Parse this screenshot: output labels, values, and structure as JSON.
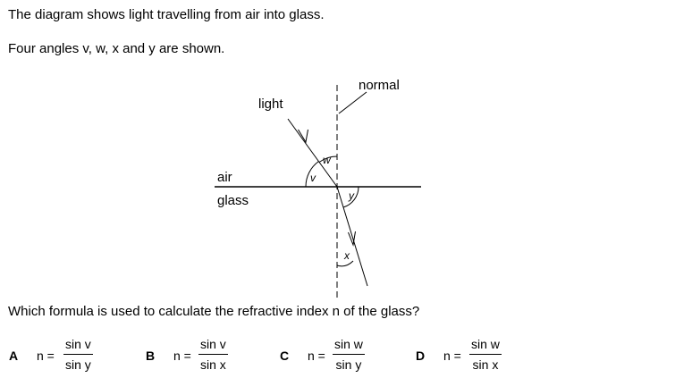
{
  "intro_line_1": "The diagram shows light travelling from air into glass.",
  "intro_line_2": "Four angles v, w, x and y are shown.",
  "diagram": {
    "label_normal": "normal",
    "label_light": "light",
    "label_air": "air",
    "label_glass": "glass",
    "angle_v": "v",
    "angle_w": "w",
    "angle_x": "x",
    "angle_y": "y"
  },
  "question": "Which formula is used to calculate the refractive index n of the glass?",
  "options": [
    {
      "letter": "A",
      "lhs": "n =",
      "numerator": "sin v",
      "denominator": "sin y"
    },
    {
      "letter": "B",
      "lhs": "n =",
      "numerator": "sin v",
      "denominator": "sin x"
    },
    {
      "letter": "C",
      "lhs": "n =",
      "numerator": "sin w",
      "denominator": "sin y"
    },
    {
      "letter": "D",
      "lhs": "n =",
      "numerator": "sin w",
      "denominator": "sin x"
    }
  ]
}
